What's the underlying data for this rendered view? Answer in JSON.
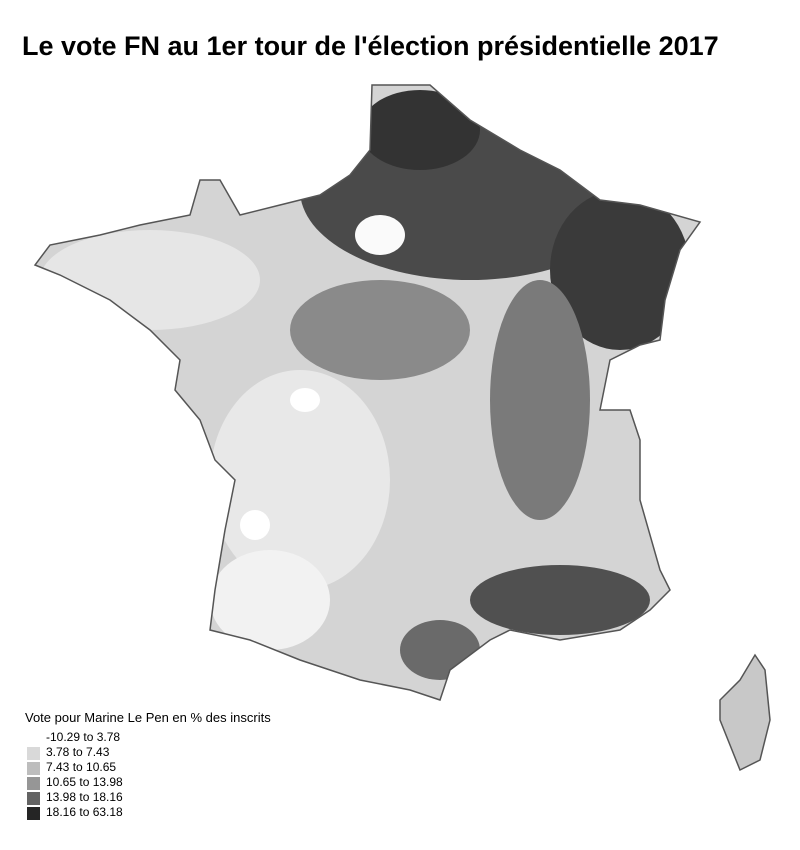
{
  "map": {
    "title": "Le vote FN au 1er tour de l'élection présidentielle 2017",
    "legend": {
      "title": "Vote pour Marine Le Pen en % des inscrits",
      "items": [
        {
          "label": "-10.29 to 3.78",
          "color": "#ffffff"
        },
        {
          "label": "3.78 to 7.43",
          "color": "#d9d9d9"
        },
        {
          "label": "7.43 to 10.65",
          "color": "#bdbdbd"
        },
        {
          "label": "10.65 to 13.98",
          "color": "#969696"
        },
        {
          "label": "13.98 to 18.16",
          "color": "#636363"
        },
        {
          "label": "18.16 to 63.18",
          "color": "#252525"
        }
      ]
    }
  }
}
